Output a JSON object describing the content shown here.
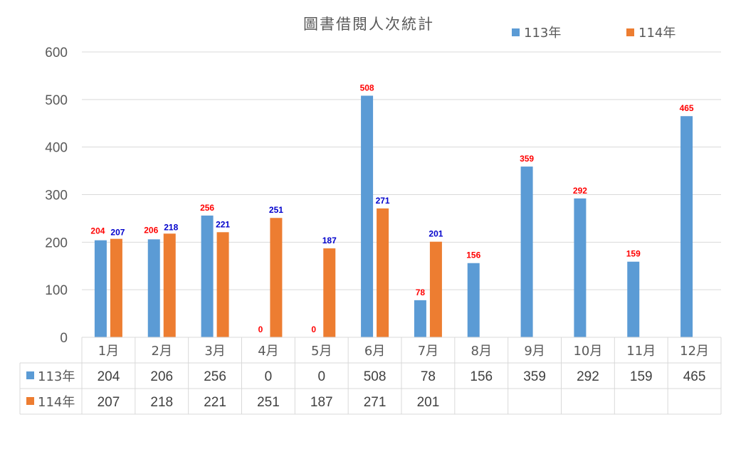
{
  "chart_data": {
    "type": "bar",
    "title": "圖書借閱人次統計",
    "categories": [
      "1月",
      "2月",
      "3月",
      "4月",
      "5月",
      "6月",
      "7月",
      "8月",
      "9月",
      "10月",
      "11月",
      "12月"
    ],
    "series": [
      {
        "name": "113年",
        "color": "#5b9bd5",
        "label_color": "#ff0000",
        "values": [
          204,
          206,
          256,
          0,
          0,
          508,
          78,
          156,
          359,
          292,
          159,
          465
        ]
      },
      {
        "name": "114年",
        "color": "#ed7d31",
        "label_color": "#0000cc",
        "values": [
          207,
          218,
          221,
          251,
          187,
          271,
          201,
          null,
          null,
          null,
          null,
          null
        ]
      }
    ],
    "ylim": [
      0,
      600
    ],
    "yticks": [
      0,
      100,
      200,
      300,
      400,
      500,
      600
    ],
    "xlabel": "",
    "ylabel": "",
    "grid": true,
    "legend_position": "top-right",
    "data_table": true
  }
}
